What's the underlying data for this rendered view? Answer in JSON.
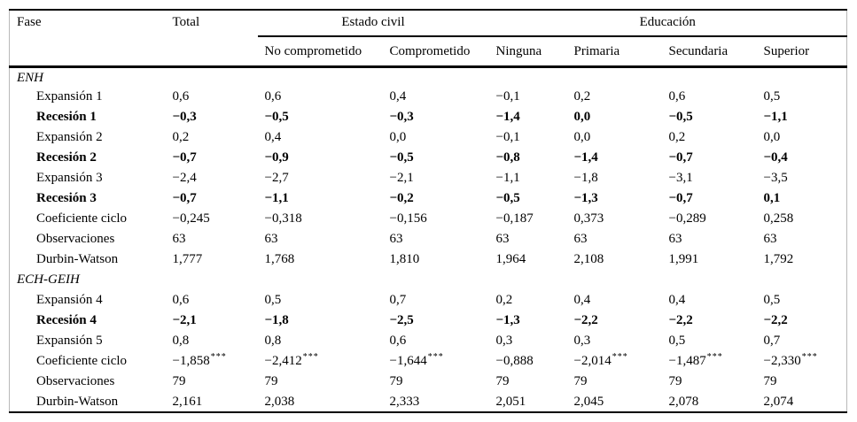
{
  "page": {
    "background": "#ffffff",
    "text_color": "#000000",
    "rule_color": "#000000",
    "frame_color": "#b9b9b9"
  },
  "table": {
    "header": {
      "fase": "Fase",
      "total": "Total",
      "groups": [
        {
          "label": "Estado civil",
          "span": 2
        },
        {
          "label": "Educación",
          "span": 4
        }
      ],
      "subheaders": [
        "No comprometido",
        "Comprometido",
        "Ninguna",
        "Primaria",
        "Secundaria",
        "Superior"
      ]
    },
    "sections": [
      {
        "label": "ENH",
        "rows": [
          {
            "label": "Expansión 1",
            "bold": false,
            "values": [
              "0,6",
              "0,6",
              "0,4",
              "−0,1",
              "0,2",
              "0,6",
              "0,5"
            ]
          },
          {
            "label": "Recesión 1",
            "bold": true,
            "values": [
              "−0,3",
              "−0,5",
              "−0,3",
              "−1,4",
              "0,0",
              "−0,5",
              "−1,1"
            ]
          },
          {
            "label": "Expansión 2",
            "bold": false,
            "values": [
              "0,2",
              "0,4",
              "0,0",
              "−0,1",
              "0,0",
              "0,2",
              "0,0"
            ]
          },
          {
            "label": "Recesión 2",
            "bold": true,
            "values": [
              "−0,7",
              "−0,9",
              "−0,5",
              "−0,8",
              "−1,4",
              "−0,7",
              "−0,4"
            ]
          },
          {
            "label": "Expansión 3",
            "bold": false,
            "values": [
              "−2,4",
              "−2,7",
              "−2,1",
              "−1,1",
              "−1,8",
              "−3,1",
              "−3,5"
            ]
          },
          {
            "label": "Recesión 3",
            "bold": true,
            "values": [
              "−0,7",
              "−1,1",
              "−0,2",
              "−0,5",
              "−1,3",
              "−0,7",
              "0,1"
            ]
          },
          {
            "label": "Coeficiente ciclo",
            "bold": false,
            "values": [
              "−0,245",
              "−0,318",
              "−0,156",
              "−0,187",
              "0,373",
              "−0,289",
              "0,258"
            ]
          },
          {
            "label": "Observaciones",
            "bold": false,
            "values": [
              "63",
              "63",
              "63",
              "63",
              "63",
              "63",
              "63"
            ]
          },
          {
            "label": "Durbin-Watson",
            "bold": false,
            "values": [
              "1,777",
              "1,768",
              "1,810",
              "1,964",
              "2,108",
              "1,991",
              "1,792"
            ]
          }
        ]
      },
      {
        "label": "ECH-GEIH",
        "rows": [
          {
            "label": "Expansión 4",
            "bold": false,
            "values": [
              "0,6",
              "0,5",
              "0,7",
              "0,2",
              "0,4",
              "0,4",
              "0,5"
            ]
          },
          {
            "label": "Recesión 4",
            "bold": true,
            "values": [
              "−2,1",
              "−1,8",
              "−2,5",
              "−1,3",
              "−2,2",
              "−2,2",
              "−2,2"
            ]
          },
          {
            "label": "Expansión 5",
            "bold": false,
            "values": [
              "0,8",
              "0,8",
              "0,6",
              "0,3",
              "0,3",
              "0,5",
              "0,7"
            ]
          },
          {
            "label": "Coeficiente ciclo",
            "bold": false,
            "values": [
              "−1,858***",
              "−2,412***",
              "−1,644***",
              "−0,888",
              "−2,014***",
              "−1,487***",
              "−2,330***"
            ]
          },
          {
            "label": "Observaciones",
            "bold": false,
            "values": [
              "79",
              "79",
              "79",
              "79",
              "79",
              "79",
              "79"
            ]
          },
          {
            "label": "Durbin-Watson",
            "bold": false,
            "values": [
              "2,161",
              "2,038",
              "2,333",
              "2,051",
              "2,045",
              "2,078",
              "2,074"
            ]
          }
        ]
      }
    ]
  }
}
